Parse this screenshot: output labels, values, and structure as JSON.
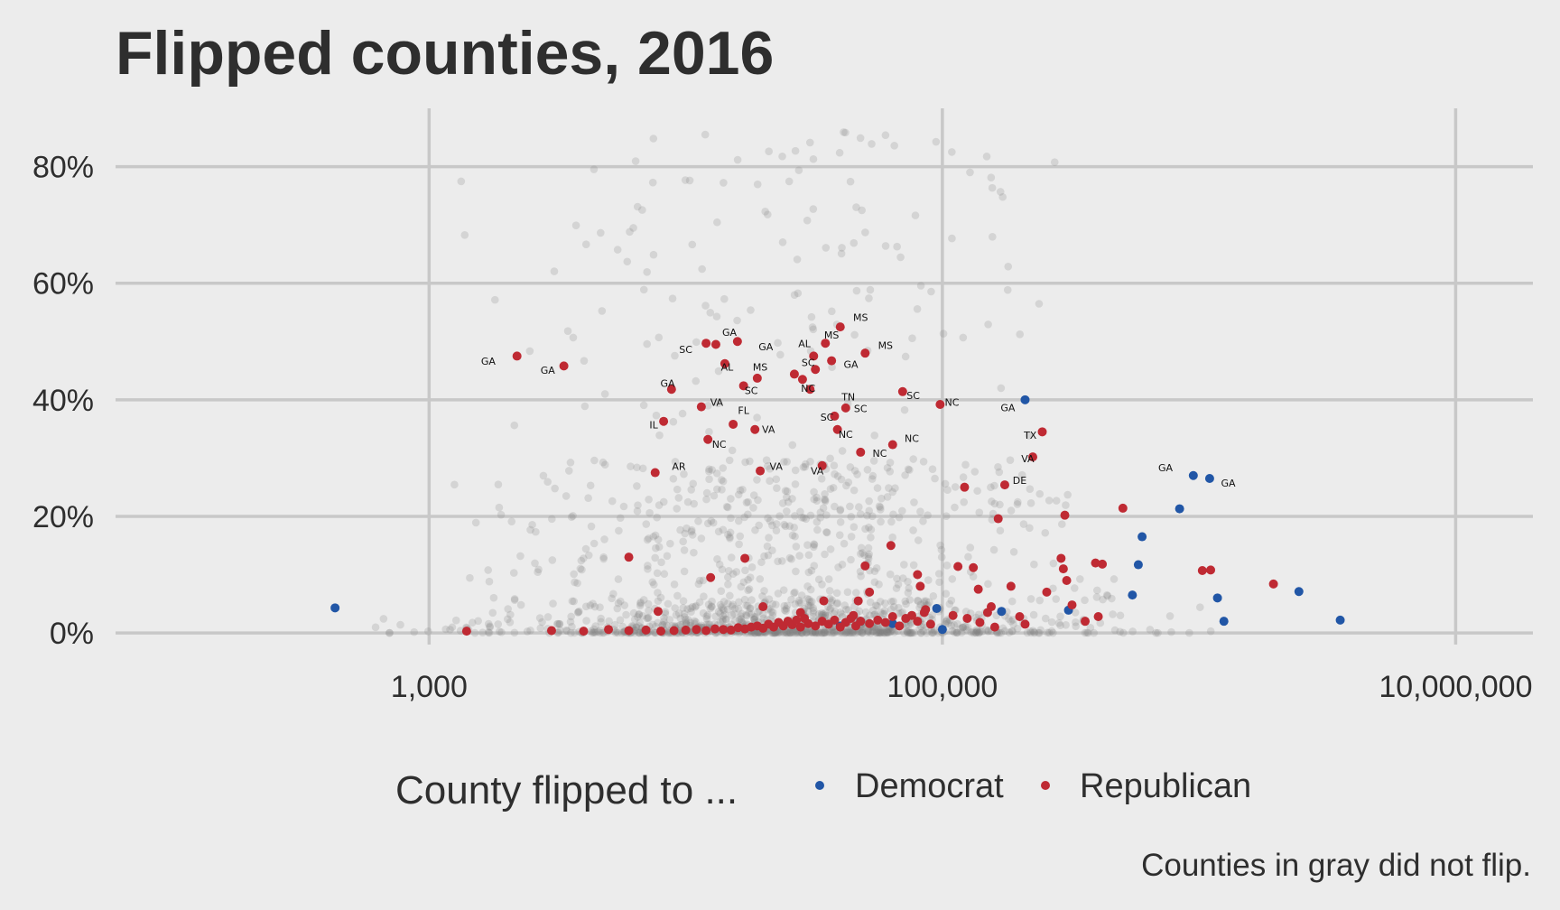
{
  "chart_data": {
    "type": "scatter",
    "title": "Flipped counties, 2016",
    "xlabel": "",
    "ylabel": "",
    "x_scale": "log10",
    "xlim": [
      60,
      20000000
    ],
    "ylim": [
      -0.02,
      0.9
    ],
    "x_ticks": [
      1000,
      100000,
      10000000
    ],
    "x_tick_labels": [
      "1,000",
      "100,000",
      "10,000,000"
    ],
    "y_ticks": [
      0,
      0.2,
      0.4,
      0.6,
      0.8
    ],
    "y_tick_labels": [
      "0%",
      "20%",
      "40%",
      "60%",
      "80%"
    ],
    "grid": true,
    "legend": {
      "title": "County flipped to ...",
      "position": "bottom",
      "entries": [
        {
          "name": "Democrat",
          "color": "#2156a6"
        },
        {
          "name": "Republican",
          "color": "#bf2a33"
        }
      ]
    },
    "caption": "Counties in gray did not flip.",
    "background_points": {
      "color": "#808080",
      "count": 1500,
      "seed": 7,
      "log10_x_range": [
        2.0,
        7.0
      ],
      "y_range": [
        0.0,
        0.86
      ]
    },
    "series": [
      {
        "name": "Democrat",
        "color": "#2156a6",
        "points": [
          [
            430,
            0.043
          ],
          [
            40000,
            0.012
          ],
          [
            48000,
            0.02
          ],
          [
            64000,
            0.016
          ],
          [
            95000,
            0.042
          ],
          [
            100000,
            0.006
          ],
          [
            170000,
            0.037
          ],
          [
            210000,
            0.4
          ],
          [
            310000,
            0.039
          ],
          [
            550000,
            0.065
          ],
          [
            580000,
            0.117
          ],
          [
            600000,
            0.165
          ],
          [
            840000,
            0.213
          ],
          [
            950000,
            0.27
          ],
          [
            1100000,
            0.265
          ],
          [
            1180000,
            0.06
          ],
          [
            1250000,
            0.02
          ],
          [
            2450000,
            0.071
          ],
          [
            3550000,
            0.022
          ]
        ]
      },
      {
        "name": "Republican",
        "color": "#bf2a33",
        "points": [
          [
            2200,
            0.475
          ],
          [
            3350,
            0.458
          ],
          [
            7600,
            0.275
          ],
          [
            8200,
            0.363
          ],
          [
            8800,
            0.418
          ],
          [
            12200,
            0.332
          ],
          [
            13100,
            0.495
          ],
          [
            12000,
            0.497
          ],
          [
            11500,
            0.388
          ],
          [
            14200,
            0.462
          ],
          [
            15300,
            0.358
          ],
          [
            15900,
            0.5
          ],
          [
            16800,
            0.424
          ],
          [
            19000,
            0.437
          ],
          [
            18600,
            0.349
          ],
          [
            19500,
            0.278
          ],
          [
            26500,
            0.444
          ],
          [
            28500,
            0.435
          ],
          [
            31500,
            0.475
          ],
          [
            30500,
            0.418
          ],
          [
            32000,
            0.452
          ],
          [
            34000,
            0.287
          ],
          [
            38000,
            0.372
          ],
          [
            40000,
            0.525
          ],
          [
            37000,
            0.467
          ],
          [
            35000,
            0.497
          ],
          [
            39000,
            0.349
          ],
          [
            42000,
            0.386
          ],
          [
            48000,
            0.31
          ],
          [
            50000,
            0.48
          ],
          [
            64000,
            0.323
          ],
          [
            70000,
            0.414
          ],
          [
            98000,
            0.392
          ],
          [
            122000,
            0.25
          ],
          [
            175000,
            0.254
          ],
          [
            165000,
            0.196
          ],
          [
            225000,
            0.302
          ],
          [
            245000,
            0.345
          ],
          [
            300000,
            0.202
          ],
          [
            6000,
            0.13
          ],
          [
            12500,
            0.095
          ],
          [
            17000,
            0.128
          ],
          [
            115000,
            0.114
          ],
          [
            132000,
            0.112
          ],
          [
            290000,
            0.128
          ],
          [
            296000,
            0.11
          ],
          [
            305000,
            0.09
          ],
          [
            395000,
            0.12
          ],
          [
            420000,
            0.118
          ],
          [
            505000,
            0.214
          ],
          [
            1030000,
            0.107
          ],
          [
            1110000,
            0.108
          ],
          [
            1950000,
            0.084
          ],
          [
            185000,
            0.08
          ],
          [
            255000,
            0.07
          ],
          [
            320000,
            0.048
          ],
          [
            360000,
            0.02
          ],
          [
            405000,
            0.028
          ],
          [
            155000,
            0.045
          ],
          [
            138000,
            0.075
          ],
          [
            50000,
            0.115
          ],
          [
            52000,
            0.07
          ],
          [
            47000,
            0.055
          ],
          [
            45000,
            0.03
          ],
          [
            34500,
            0.055
          ],
          [
            28000,
            0.035
          ],
          [
            86000,
            0.04
          ],
          [
            82000,
            0.08
          ],
          [
            80000,
            0.1
          ],
          [
            7800,
            0.037
          ],
          [
            20000,
            0.045
          ],
          [
            63000,
            0.15
          ],
          [
            1400,
            0.003
          ],
          [
            3000,
            0.004
          ],
          [
            4000,
            0.003
          ],
          [
            5000,
            0.006
          ],
          [
            6000,
            0.004
          ],
          [
            7000,
            0.005
          ],
          [
            8000,
            0.003
          ],
          [
            9000,
            0.004
          ],
          [
            10000,
            0.005
          ],
          [
            11000,
            0.006
          ],
          [
            12000,
            0.004
          ],
          [
            13000,
            0.007
          ],
          [
            14000,
            0.006
          ],
          [
            15000,
            0.005
          ],
          [
            16000,
            0.009
          ],
          [
            17000,
            0.007
          ],
          [
            18000,
            0.01
          ],
          [
            19000,
            0.012
          ],
          [
            20000,
            0.008
          ],
          [
            21000,
            0.015
          ],
          [
            22000,
            0.01
          ],
          [
            23000,
            0.018
          ],
          [
            24000,
            0.012
          ],
          [
            25000,
            0.02
          ],
          [
            26000,
            0.014
          ],
          [
            27000,
            0.022
          ],
          [
            28000,
            0.01
          ],
          [
            29000,
            0.025
          ],
          [
            30000,
            0.016
          ],
          [
            32000,
            0.012
          ],
          [
            34000,
            0.02
          ],
          [
            36000,
            0.015
          ],
          [
            38000,
            0.022
          ],
          [
            40000,
            0.01
          ],
          [
            42000,
            0.018
          ],
          [
            44000,
            0.025
          ],
          [
            46000,
            0.012
          ],
          [
            48000,
            0.02
          ],
          [
            52000,
            0.016
          ],
          [
            56000,
            0.022
          ],
          [
            60000,
            0.018
          ],
          [
            64000,
            0.028
          ],
          [
            68000,
            0.012
          ],
          [
            72000,
            0.025
          ],
          [
            76000,
            0.03
          ],
          [
            80000,
            0.02
          ],
          [
            85000,
            0.035
          ],
          [
            90000,
            0.015
          ],
          [
            110000,
            0.03
          ],
          [
            125000,
            0.025
          ],
          [
            140000,
            0.018
          ],
          [
            150000,
            0.035
          ],
          [
            160000,
            0.01
          ],
          [
            200000,
            0.028
          ],
          [
            210000,
            0.015
          ]
        ]
      }
    ],
    "annotations": [
      {
        "text": "GA",
        "x": 1700,
        "y": 0.46
      },
      {
        "text": "GA",
        "x": 2900,
        "y": 0.445
      },
      {
        "text": "SC",
        "x": 10000,
        "y": 0.48
      },
      {
        "text": "GA",
        "x": 14800,
        "y": 0.51
      },
      {
        "text": "GA",
        "x": 20500,
        "y": 0.485
      },
      {
        "text": "AL",
        "x": 14500,
        "y": 0.45
      },
      {
        "text": "MS",
        "x": 19500,
        "y": 0.45
      },
      {
        "text": "GA",
        "x": 8500,
        "y": 0.422
      },
      {
        "text": "SC",
        "x": 18000,
        "y": 0.41
      },
      {
        "text": "VA",
        "x": 13200,
        "y": 0.39
      },
      {
        "text": "FL",
        "x": 16800,
        "y": 0.376
      },
      {
        "text": "IL",
        "x": 7500,
        "y": 0.351
      },
      {
        "text": "VA",
        "x": 21000,
        "y": 0.343
      },
      {
        "text": "NC",
        "x": 13500,
        "y": 0.318
      },
      {
        "text": "AR",
        "x": 9400,
        "y": 0.28
      },
      {
        "text": "VA",
        "x": 22500,
        "y": 0.28
      },
      {
        "text": "VA",
        "x": 32500,
        "y": 0.272
      },
      {
        "text": "AL",
        "x": 29000,
        "y": 0.49
      },
      {
        "text": "MS",
        "x": 37000,
        "y": 0.505
      },
      {
        "text": "MS",
        "x": 48000,
        "y": 0.535
      },
      {
        "text": "MS",
        "x": 60000,
        "y": 0.487
      },
      {
        "text": "SC",
        "x": 30000,
        "y": 0.458
      },
      {
        "text": "GA",
        "x": 44000,
        "y": 0.455
      },
      {
        "text": "NC",
        "x": 30000,
        "y": 0.414
      },
      {
        "text": "TN",
        "x": 43000,
        "y": 0.399
      },
      {
        "text": "SC",
        "x": 48000,
        "y": 0.379
      },
      {
        "text": "SC",
        "x": 35500,
        "y": 0.364
      },
      {
        "text": "NC",
        "x": 42000,
        "y": 0.335
      },
      {
        "text": "NC",
        "x": 76000,
        "y": 0.328
      },
      {
        "text": "NC",
        "x": 57000,
        "y": 0.302
      },
      {
        "text": "SC",
        "x": 77000,
        "y": 0.401
      },
      {
        "text": "NC",
        "x": 109000,
        "y": 0.39
      },
      {
        "text": "GA",
        "x": 180000,
        "y": 0.38
      },
      {
        "text": "TX",
        "x": 220000,
        "y": 0.333
      },
      {
        "text": "VA",
        "x": 215000,
        "y": 0.293
      },
      {
        "text": "DE",
        "x": 200000,
        "y": 0.256
      },
      {
        "text": "GA",
        "x": 740000,
        "y": 0.277
      },
      {
        "text": "GA",
        "x": 1300000,
        "y": 0.251
      }
    ]
  }
}
